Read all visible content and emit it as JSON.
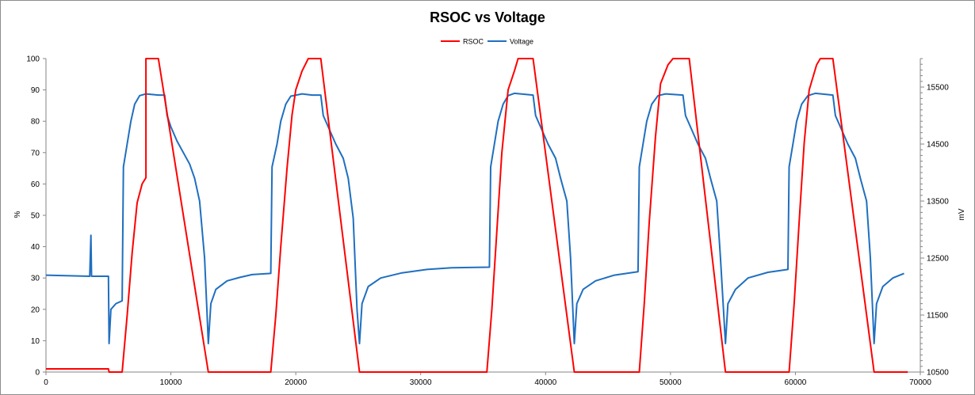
{
  "chart_data": {
    "type": "line",
    "title": "RSOC vs Voltage",
    "xlabel": "",
    "ylabel_left": "%",
    "ylabel_right": "mV",
    "xlim": [
      0,
      70000
    ],
    "ylim_left": [
      0,
      100
    ],
    "ylim_right": [
      10500,
      16000
    ],
    "x_ticks": [
      "0",
      "10000",
      "20000",
      "30000",
      "40000",
      "50000",
      "60000",
      "70000"
    ],
    "y_left_ticks": [
      "0",
      "10",
      "20",
      "30",
      "40",
      "50",
      "60",
      "70",
      "80",
      "90",
      "100"
    ],
    "y_right_ticks": [
      "10500",
      "11500",
      "12500",
      "13500",
      "14500",
      "15500"
    ],
    "legend_position": "top-center",
    "grid": false,
    "series": [
      {
        "name": "RSOC",
        "axis": "left",
        "color": "#ff0000",
        "points": [
          [
            0,
            1
          ],
          [
            5000,
            1
          ],
          [
            5050,
            0
          ],
          [
            6100,
            0
          ],
          [
            6500,
            18
          ],
          [
            6900,
            38
          ],
          [
            7300,
            54
          ],
          [
            7700,
            60
          ],
          [
            8000,
            62
          ],
          [
            8000,
            100
          ],
          [
            9000,
            100
          ],
          [
            13000,
            0
          ],
          [
            18000,
            0
          ],
          [
            18400,
            18
          ],
          [
            18800,
            40
          ],
          [
            19300,
            65
          ],
          [
            19700,
            82
          ],
          [
            20000,
            90
          ],
          [
            20500,
            96
          ],
          [
            21000,
            100
          ],
          [
            22000,
            100
          ],
          [
            25100,
            0
          ],
          [
            35300,
            0
          ],
          [
            35700,
            20
          ],
          [
            36100,
            45
          ],
          [
            36500,
            70
          ],
          [
            37000,
            90
          ],
          [
            37500,
            96
          ],
          [
            37800,
            100
          ],
          [
            39000,
            100
          ],
          [
            42300,
            0
          ],
          [
            47500,
            0
          ],
          [
            47900,
            22
          ],
          [
            48300,
            48
          ],
          [
            48800,
            75
          ],
          [
            49200,
            92
          ],
          [
            49800,
            98
          ],
          [
            50200,
            100
          ],
          [
            51500,
            100
          ],
          [
            54400,
            0
          ],
          [
            59500,
            0
          ],
          [
            59900,
            22
          ],
          [
            60300,
            48
          ],
          [
            60700,
            73
          ],
          [
            61100,
            90
          ],
          [
            61700,
            98
          ],
          [
            62000,
            100
          ],
          [
            63000,
            100
          ],
          [
            66300,
            0
          ],
          [
            69000,
            0
          ]
        ]
      },
      {
        "name": "Voltage",
        "axis": "right",
        "color": "#1f6fc0",
        "points": [
          [
            0,
            12200
          ],
          [
            3500,
            12180
          ],
          [
            3600,
            12900
          ],
          [
            3650,
            12180
          ],
          [
            5000,
            12180
          ],
          [
            5050,
            11000
          ],
          [
            5200,
            11600
          ],
          [
            5600,
            11700
          ],
          [
            6100,
            11750
          ],
          [
            6200,
            14100
          ],
          [
            6500,
            14500
          ],
          [
            6800,
            14900
          ],
          [
            7100,
            15200
          ],
          [
            7500,
            15350
          ],
          [
            8000,
            15380
          ],
          [
            9000,
            15360
          ],
          [
            9500,
            15360
          ],
          [
            9700,
            15000
          ],
          [
            10000,
            14800
          ],
          [
            10500,
            14550
          ],
          [
            11000,
            14350
          ],
          [
            11500,
            14150
          ],
          [
            11900,
            13900
          ],
          [
            12300,
            13500
          ],
          [
            12700,
            12500
          ],
          [
            12900,
            11500
          ],
          [
            13000,
            11000
          ],
          [
            13200,
            11700
          ],
          [
            13600,
            11950
          ],
          [
            14500,
            12100
          ],
          [
            15500,
            12160
          ],
          [
            16500,
            12210
          ],
          [
            18000,
            12230
          ],
          [
            18100,
            14100
          ],
          [
            18500,
            14500
          ],
          [
            18800,
            14900
          ],
          [
            19200,
            15200
          ],
          [
            19600,
            15340
          ],
          [
            20500,
            15380
          ],
          [
            21300,
            15360
          ],
          [
            22000,
            15360
          ],
          [
            22200,
            15000
          ],
          [
            22600,
            14800
          ],
          [
            23200,
            14500
          ],
          [
            23800,
            14250
          ],
          [
            24200,
            13900
          ],
          [
            24600,
            13200
          ],
          [
            24900,
            11600
          ],
          [
            25100,
            11000
          ],
          [
            25300,
            11700
          ],
          [
            25800,
            12000
          ],
          [
            26800,
            12150
          ],
          [
            28500,
            12240
          ],
          [
            30500,
            12300
          ],
          [
            32500,
            12330
          ],
          [
            35500,
            12340
          ],
          [
            35600,
            14100
          ],
          [
            35900,
            14500
          ],
          [
            36200,
            14900
          ],
          [
            36600,
            15200
          ],
          [
            37000,
            15350
          ],
          [
            37500,
            15390
          ],
          [
            39000,
            15360
          ],
          [
            39200,
            15000
          ],
          [
            39600,
            14800
          ],
          [
            40200,
            14500
          ],
          [
            40800,
            14250
          ],
          [
            41200,
            13900
          ],
          [
            41700,
            13500
          ],
          [
            42000,
            12500
          ],
          [
            42300,
            11000
          ],
          [
            42500,
            11700
          ],
          [
            43000,
            11950
          ],
          [
            44000,
            12100
          ],
          [
            45500,
            12200
          ],
          [
            47400,
            12260
          ],
          [
            47500,
            14100
          ],
          [
            47800,
            14500
          ],
          [
            48100,
            14900
          ],
          [
            48500,
            15200
          ],
          [
            49000,
            15350
          ],
          [
            49600,
            15380
          ],
          [
            51000,
            15360
          ],
          [
            51200,
            15000
          ],
          [
            51600,
            14800
          ],
          [
            52200,
            14500
          ],
          [
            52800,
            14250
          ],
          [
            53200,
            13900
          ],
          [
            53700,
            13500
          ],
          [
            54000,
            12500
          ],
          [
            54400,
            11000
          ],
          [
            54600,
            11700
          ],
          [
            55200,
            11950
          ],
          [
            56200,
            12150
          ],
          [
            57800,
            12250
          ],
          [
            59400,
            12300
          ],
          [
            59500,
            14100
          ],
          [
            59800,
            14500
          ],
          [
            60100,
            14900
          ],
          [
            60500,
            15200
          ],
          [
            61000,
            15350
          ],
          [
            61600,
            15390
          ],
          [
            63000,
            15360
          ],
          [
            63200,
            15000
          ],
          [
            63600,
            14800
          ],
          [
            64200,
            14500
          ],
          [
            64800,
            14250
          ],
          [
            65200,
            13900
          ],
          [
            65700,
            13500
          ],
          [
            66000,
            12500
          ],
          [
            66300,
            11000
          ],
          [
            66500,
            11700
          ],
          [
            67000,
            12000
          ],
          [
            67800,
            12150
          ],
          [
            68700,
            12230
          ]
        ]
      }
    ]
  }
}
